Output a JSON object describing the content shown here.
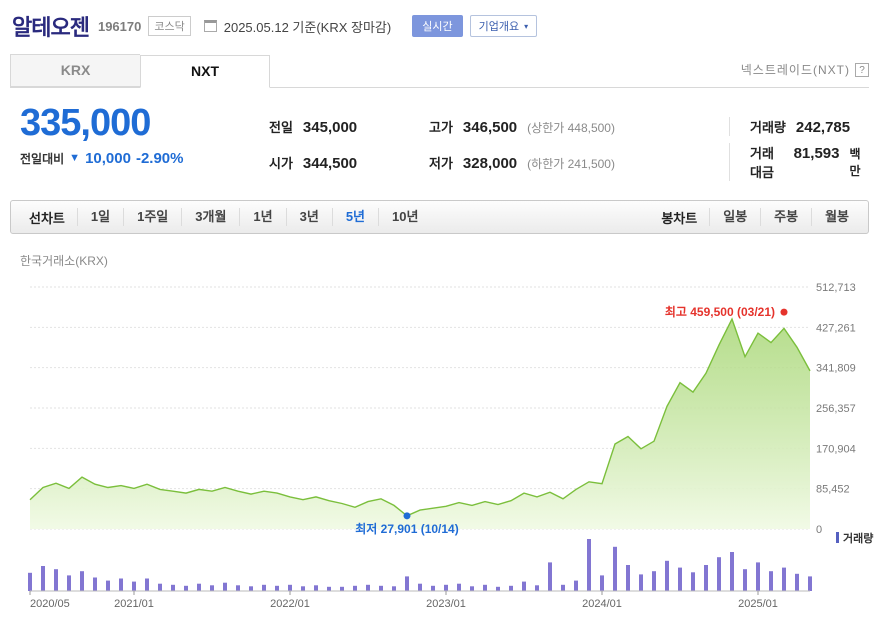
{
  "header": {
    "title": "알테오젠",
    "code": "196170",
    "market_badge": "코스닥",
    "date_text": "2025.05.12 기준(KRX 장마감)",
    "realtime_badge": "실시간",
    "company_overview_button": "기업개요",
    "dropdown_arrow": "▾"
  },
  "tabs": {
    "krx": "KRX",
    "nxt": "NXT",
    "nextrade_link": "넥스트레이드(NXT)",
    "help_icon": "?"
  },
  "price": {
    "current": "335,000",
    "change_label": "전일대비",
    "change_arrow": "▼",
    "change_value": "10,000",
    "change_percent": "-2.90%"
  },
  "summary": {
    "prev_label": "전일",
    "prev_value": "345,000",
    "high_label": "고가",
    "high_value": "346,500",
    "upper_limit": "(상한가 448,500)",
    "volume_label": "거래량",
    "volume_value": "242,785",
    "open_label": "시가",
    "open_value": "344,500",
    "low_label": "저가",
    "low_value": "328,000",
    "lower_limit": "(하한가 241,500)",
    "value_label": "거래대금",
    "value_value": "81,593",
    "value_unit": "백만"
  },
  "toolbar": {
    "line_label": "선차트",
    "ranges": [
      "1일",
      "1주일",
      "3개월",
      "1년",
      "3년",
      "5년",
      "10년"
    ],
    "selected_range": "5년",
    "candle_label": "봉차트",
    "candle_items": [
      "일봉",
      "주봉",
      "월봉"
    ]
  },
  "chart": {
    "source_label": "한국거래소(KRX)",
    "volume_legend": "거래량"
  },
  "colors": {
    "down_blue": "#1f6cd5",
    "up_red": "#e5332c",
    "line_green": "#7bbf3c",
    "area_green_top": "#a4d570",
    "area_green_bottom": "#f1fae5",
    "volume_purple": "#8276d2",
    "grid_gray": "#e2e2e2"
  },
  "chart_data": {
    "type": "area",
    "title": "알테오젠 5년 주가 추이",
    "x_start": "2020-05",
    "x_interval": "month",
    "x_labels": [
      "2020/05",
      "2021/01",
      "2022/01",
      "2023/01",
      "2024/01",
      "2025/01"
    ],
    "x_label_indices": [
      0,
      8,
      20,
      32,
      44,
      56
    ],
    "y_ticks": [
      0,
      85452,
      170904,
      256357,
      341809,
      427261,
      512713
    ],
    "y_tick_labels": [
      "0",
      "85,452",
      "170,904",
      "256,357",
      "341,809",
      "427,261",
      "512,713"
    ],
    "ylim": [
      0,
      512713
    ],
    "price": [
      62000,
      88000,
      97000,
      86000,
      110000,
      95000,
      88000,
      92000,
      86000,
      95000,
      84000,
      80000,
      76000,
      84000,
      80000,
      88000,
      80000,
      74000,
      80000,
      76000,
      68000,
      62000,
      68000,
      60000,
      54000,
      46000,
      58000,
      64000,
      50000,
      27901,
      40000,
      44000,
      48000,
      56000,
      50000,
      58000,
      52000,
      60000,
      76000,
      68000,
      78000,
      64000,
      84000,
      100000,
      96000,
      180000,
      196000,
      170000,
      186000,
      260000,
      310000,
      290000,
      330000,
      390000,
      445000,
      365000,
      415000,
      395000,
      425000,
      385000,
      335000
    ],
    "volume": [
      35,
      48,
      42,
      30,
      38,
      26,
      20,
      24,
      18,
      24,
      14,
      12,
      10,
      14,
      11,
      16,
      11,
      9,
      12,
      10,
      12,
      9,
      11,
      8,
      8,
      10,
      12,
      10,
      9,
      28,
      14,
      10,
      12,
      14,
      9,
      12,
      8,
      10,
      18,
      11,
      55,
      12,
      20,
      100,
      30,
      85,
      50,
      32,
      38,
      58,
      45,
      36,
      50,
      65,
      75,
      42,
      55,
      38,
      45,
      33,
      28
    ],
    "annotations": {
      "max": {
        "label": "최고 459,500 (03/21)",
        "value": 459500,
        "index": 58
      },
      "min": {
        "label": "최저 27,901 (10/14)",
        "value": 27901,
        "index": 29
      }
    }
  }
}
